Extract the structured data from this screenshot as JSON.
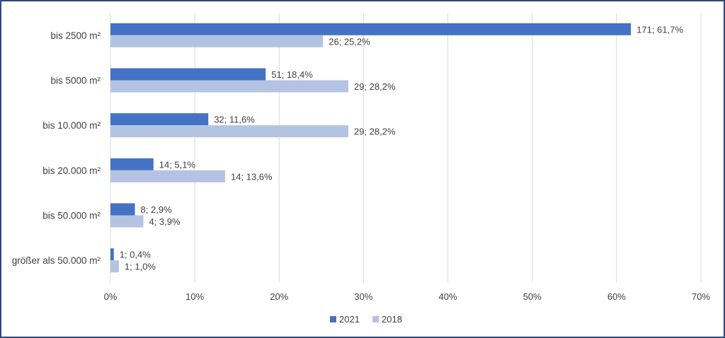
{
  "chart_data": {
    "type": "bar",
    "orientation": "horizontal",
    "categories": [
      "bis 2500 m²",
      "bis 5000 m²",
      "bis 10.000 m²",
      "bis 20.000 m²",
      "bis 50.000 m²",
      "größer als 50.000 m²"
    ],
    "series": [
      {
        "name": "2021",
        "color": "#4472c4",
        "values": [
          61.7,
          18.4,
          11.6,
          5.1,
          2.9,
          0.4
        ],
        "labels": [
          "171; 61,7%",
          "51; 18,4%",
          "32; 11,6%",
          "14; 5,1%",
          "8; 2,9%",
          "1; 0,4%"
        ]
      },
      {
        "name": "2018",
        "color": "#b4c3e2",
        "values": [
          25.2,
          28.2,
          28.2,
          13.6,
          3.9,
          1.0
        ],
        "labels": [
          "26; 25,2%",
          "29; 28,2%",
          "29; 28,2%",
          "14; 13,6%",
          "4; 3,9%",
          "1; 1,0%"
        ]
      }
    ],
    "xlim": [
      0,
      70
    ],
    "xticks": [
      "0%",
      "10%",
      "20%",
      "30%",
      "40%",
      "50%",
      "60%",
      "70%"
    ],
    "grid": true,
    "legend_position": "bottom",
    "title": "",
    "xlabel": "",
    "ylabel": ""
  }
}
